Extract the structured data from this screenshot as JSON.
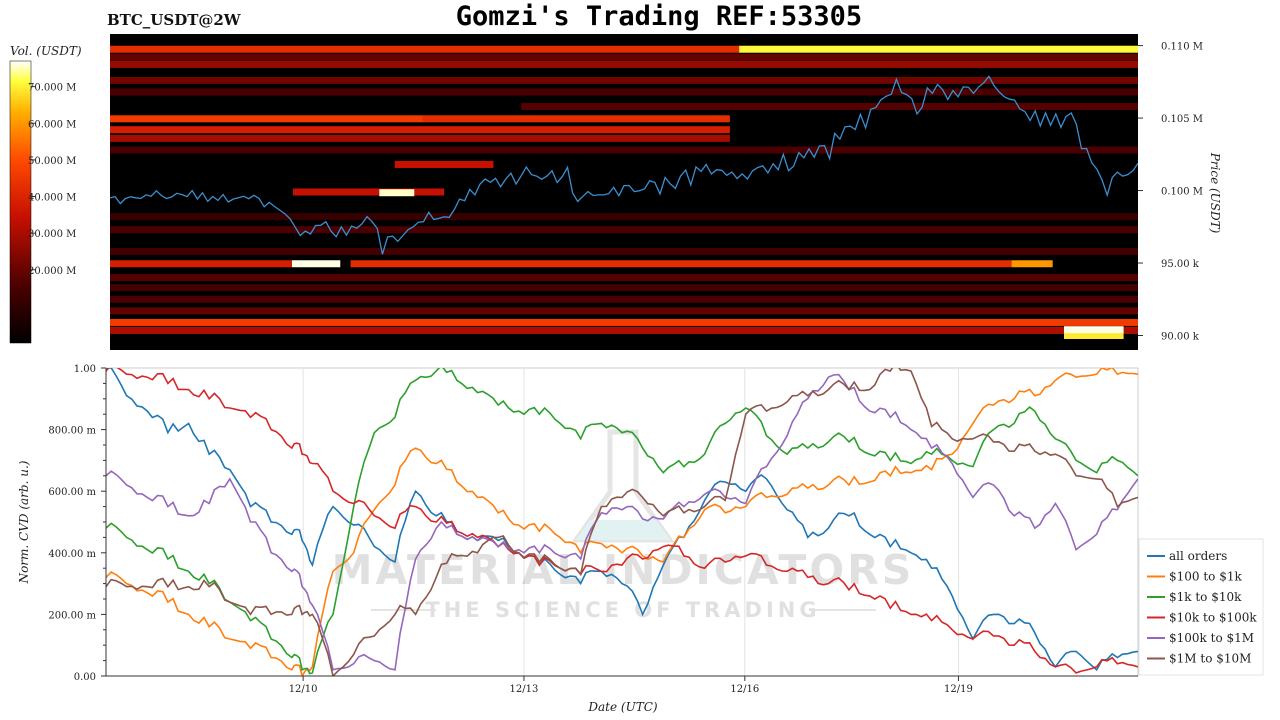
{
  "header": {
    "pair_label": "BTC_USDT@2W",
    "title": "Gomzi's Trading REF:53305"
  },
  "watermark": {
    "line1": "MATERIAL INDICATORS",
    "line2": "THE SCIENCE OF TRADING"
  },
  "colors": {
    "heatmap_bg": "#000000",
    "price_line": "#3a8fd0",
    "all_orders": "#1f77b4",
    "usd_100_1k": "#ff7f0e",
    "usd_1k_10k": "#2ca02c",
    "usd_10k_100k": "#d62728",
    "usd_100k_1m": "#9467bd",
    "usd_1m_10m": "#8c564b"
  },
  "chart_data": [
    {
      "type": "heatmap",
      "ylabel": "Price (USDT)",
      "yticks": [
        "0.110 M",
        "0.105 M",
        "0.100 M",
        "95.00 k",
        "90.00 k"
      ],
      "ytick_values": [
        110000,
        105000,
        100000,
        95000,
        90000
      ],
      "ylim": [
        89000,
        110800
      ],
      "colorbar": {
        "label": "Vol. (USDT)",
        "ticks": [
          "70.000 M",
          "60.000 M",
          "50.000 M",
          "40.000 M",
          "30.000 M",
          "20.000 M"
        ],
        "tick_values": [
          70,
          60,
          50,
          40,
          30,
          20
        ],
        "range": [
          0,
          77
        ]
      },
      "price_series": {
        "x": [
          0,
          0.5,
          1,
          1.5,
          2,
          2.5,
          3,
          3.5,
          4,
          4.5,
          5,
          5.5,
          6,
          6.5,
          7,
          7.5,
          8,
          8.5,
          9,
          9.5,
          10,
          10.5,
          11,
          11.5,
          12,
          12.5,
          13,
          13.5,
          14,
          14.5,
          15,
          15.5,
          16,
          16.5,
          17,
          17.5,
          18,
          18.5,
          19,
          19.5,
          20,
          20.5,
          21,
          21.5,
          22,
          22.5,
          23,
          23.5,
          24,
          24.5,
          25,
          25.5,
          26,
          26.5,
          27,
          27.5,
          28,
          28.5,
          29,
          29.5,
          30,
          30.5,
          31,
          31.5,
          32,
          32.5,
          33,
          33.5,
          34,
          34.5,
          35,
          35.5,
          36,
          36.5,
          37,
          37.5,
          38,
          38.5,
          39,
          39.5,
          40,
          40.5,
          41,
          41.5,
          42,
          42.5,
          43,
          43.5,
          44,
          44.5,
          45,
          45.5,
          46,
          46.5,
          47,
          47.5,
          48,
          48.5,
          49,
          49.5,
          50,
          50.5,
          51,
          51.5,
          52,
          52.5,
          53,
          53.5,
          54,
          54.5,
          55,
          55.5,
          56,
          56.5,
          57,
          57.5,
          58,
          58.5,
          59,
          59.5,
          60,
          60.5,
          61,
          61.5,
          62,
          62.5,
          63,
          63.5,
          64,
          64.5,
          65,
          65.5,
          66,
          66.5,
          67,
          67.5,
          68,
          68.5,
          69,
          69.5,
          70,
          70.5,
          71,
          71.5,
          72,
          72.5,
          73,
          73.5,
          74,
          74.5,
          75,
          75.5,
          76,
          76.5,
          77,
          77.5,
          78,
          78.5,
          79,
          79.5,
          80,
          80.5,
          81,
          81.5,
          82,
          82.5,
          83,
          83.5,
          84,
          84.5,
          85,
          85.5,
          86,
          86.5,
          87,
          87.5,
          88,
          88.5,
          89,
          89.5,
          90,
          90.5,
          91,
          91.5,
          92,
          92.5,
          93,
          93.5,
          94,
          94.5,
          95,
          95.5,
          96,
          96.5,
          97,
          97.5,
          98,
          98.5,
          99,
          99.5,
          100
        ],
        "y": [
          99500,
          99580,
          99100,
          99450,
          99570,
          99500,
          99450,
          99710,
          99600,
          99980,
          99660,
          99450,
          99560,
          99810,
          99720,
          99580,
          100000,
          99420,
          99850,
          99250,
          99590,
          99320,
          99730,
          99210,
          99420,
          99500,
          99600,
          99440,
          99670,
          99450,
          98880,
          99180,
          98900,
          98660,
          98400,
          98060,
          97500,
          96900,
          97200,
          97000,
          97590,
          97600,
          97850,
          97200,
          96810,
          97500,
          96930,
          97550,
          97400,
          97700,
          98200,
          97850,
          97380,
          95600,
          96800,
          96850,
          96500,
          96900,
          97300,
          97500,
          97820,
          97850,
          98500,
          98000,
          98080,
          98190,
          98150,
          98700,
          99410,
          99300,
          100080,
          99700,
          100450,
          100800,
          100570,
          100850,
          100260,
          100800,
          101200,
          100450,
          101020,
          101620,
          101100,
          101000,
          100780,
          101000,
          101360,
          100550,
          100960,
          101600,
          99830,
          99250,
          99600,
          99930,
          99660,
          99700,
          99700,
          99780,
          100220,
          99640,
          100340,
          100350,
          99930,
          99990,
          100120,
          100680,
          100560,
          99760,
          100900,
          100460,
          100150,
          101000,
          101420,
          100380,
          101630,
          101320,
          101800,
          101140,
          101440,
          101400,
          101050,
          101270,
          100830,
          101150,
          100800,
          101360,
          101580,
          101700,
          101220,
          101850,
          101440,
          102500,
          101370,
          101680,
          102620,
          102260,
          102870,
          102300,
          103070,
          103100,
          102200,
          103940,
          103550,
          104400,
          104440,
          104210,
          105250,
          104330,
          105600,
          105730,
          106270,
          106500,
          106640,
          107680,
          106760,
          106620,
          106340,
          105290,
          105740,
          107080,
          106700,
          107320,
          106950,
          106280,
          106900,
          106470,
          107150,
          107130,
          106700,
          107150,
          107430,
          107880,
          107230,
          106800,
          106470,
          106300,
          106240,
          105630,
          105450,
          104840,
          105490,
          104460,
          105360,
          104500,
          105290,
          104360,
          105100,
          105350,
          104590,
          102890,
          102900,
          101920,
          101470,
          100740,
          99680,
          100900,
          101270,
          101000,
          101100,
          101370,
          101880,
          101430,
          100180,
          100390
        ]
      },
      "price_series_note": "x is position along the shared time axis (0 = left edge, 100 = right edge, 12/10 at 19.1, 12/13 at 40.5, 12/16 at 61.9, 12/19 at 82.6)",
      "bands": [
        {
          "price": 109750,
          "start": 0,
          "end": 61.2,
          "intensity": 0.55
        },
        {
          "price": 109750,
          "start": 61.2,
          "end": 100,
          "intensity": 0.92
        },
        {
          "price": 109200,
          "start": 0,
          "end": 100,
          "intensity": 0.25
        },
        {
          "price": 108700,
          "start": 0,
          "end": 100,
          "intensity": 0.35
        },
        {
          "price": 107600,
          "start": 0,
          "end": 100,
          "intensity": 0.28
        },
        {
          "price": 106800,
          "start": 0,
          "end": 100,
          "intensity": 0.2
        },
        {
          "price": 105800,
          "start": 40,
          "end": 100,
          "intensity": 0.22
        },
        {
          "price": 104950,
          "start": 0,
          "end": 30.4,
          "intensity": 0.6
        },
        {
          "price": 104950,
          "start": 30.4,
          "end": 60.3,
          "intensity": 0.55
        },
        {
          "price": 104200,
          "start": 0,
          "end": 60.3,
          "intensity": 0.5
        },
        {
          "price": 103600,
          "start": 0,
          "end": 60.3,
          "intensity": 0.38
        },
        {
          "price": 102800,
          "start": 0,
          "end": 100,
          "intensity": 0.2
        },
        {
          "price": 101800,
          "start": 27.7,
          "end": 37.3,
          "intensity": 0.45
        },
        {
          "price": 99900,
          "start": 17.8,
          "end": 32.5,
          "intensity": 0.45
        },
        {
          "price": 99850,
          "start": 26.2,
          "end": 29.6,
          "intensity": 0.98
        },
        {
          "price": 98200,
          "start": 0,
          "end": 100,
          "intensity": 0.15
        },
        {
          "price": 97300,
          "start": 0,
          "end": 100,
          "intensity": 0.2
        },
        {
          "price": 95800,
          "start": 0,
          "end": 100,
          "intensity": 0.18
        },
        {
          "price": 94950,
          "start": 0,
          "end": 17.7,
          "intensity": 0.5
        },
        {
          "price": 94950,
          "start": 17.7,
          "end": 22.4,
          "intensity": 0.99
        },
        {
          "price": 94950,
          "start": 23.4,
          "end": 87.7,
          "intensity": 0.55
        },
        {
          "price": 94950,
          "start": 87.7,
          "end": 91.7,
          "intensity": 0.78
        },
        {
          "price": 94000,
          "start": 0,
          "end": 100,
          "intensity": 0.22
        },
        {
          "price": 93300,
          "start": 0,
          "end": 100,
          "intensity": 0.18
        },
        {
          "price": 92500,
          "start": 0,
          "end": 100,
          "intensity": 0.2
        },
        {
          "price": 91700,
          "start": 0,
          "end": 100,
          "intensity": 0.25
        },
        {
          "price": 90900,
          "start": 0,
          "end": 100,
          "intensity": 0.6
        },
        {
          "price": 90350,
          "start": 0,
          "end": 100,
          "intensity": 0.4
        },
        {
          "price": 90000,
          "start": 92.8,
          "end": 98.6,
          "intensity": 0.9
        },
        {
          "price": 90400,
          "start": 92.8,
          "end": 98.6,
          "intensity": 0.99
        }
      ]
    },
    {
      "type": "line",
      "xlabel": "Date (UTC)",
      "ylabel": "Norm. CVD (arb. u.)",
      "xticks": [
        "12/10",
        "12/13",
        "12/16",
        "12/19"
      ],
      "xtick_positions": [
        19.1,
        40.5,
        61.9,
        82.6
      ],
      "yticks": [
        "1.00",
        "800.00 m",
        "600.00 m",
        "400.00 m",
        "200.00 m",
        "0.00"
      ],
      "ytick_values": [
        1.0,
        0.8,
        0.6,
        0.4,
        0.2,
        0.0
      ],
      "ylim": [
        0,
        1.0
      ],
      "legend_position": "lower-right",
      "x": [
        0,
        2,
        4,
        6,
        8,
        10,
        12,
        14,
        16,
        18,
        19,
        20,
        22,
        24,
        26,
        28,
        30,
        32,
        34,
        36,
        38,
        40,
        42,
        44,
        46,
        48,
        50,
        52,
        54,
        56,
        58,
        60,
        62,
        64,
        66,
        68,
        70,
        72,
        74,
        76,
        78,
        80,
        82,
        84,
        86,
        88,
        90,
        92,
        94,
        96,
        98,
        100
      ],
      "series": [
        {
          "name": "all orders",
          "color_key": "all_orders",
          "values": [
            1.0,
            0.91,
            0.86,
            0.79,
            0.82,
            0.72,
            0.67,
            0.55,
            0.5,
            0.46,
            0.44,
            0.36,
            0.55,
            0.49,
            0.42,
            0.37,
            0.6,
            0.52,
            0.46,
            0.44,
            0.44,
            0.4,
            0.36,
            0.33,
            0.3,
            0.34,
            0.3,
            0.2,
            0.36,
            0.45,
            0.57,
            0.63,
            0.6,
            0.64,
            0.54,
            0.45,
            0.48,
            0.52,
            0.46,
            0.42,
            0.4,
            0.35,
            0.26,
            0.12,
            0.2,
            0.17,
            0.14,
            0.03,
            0.08,
            0.02,
            0.06,
            0.08
          ]
        },
        {
          "name": "$100 to $1k",
          "color_key": "usd_100_1k",
          "values": [
            0.32,
            0.3,
            0.27,
            0.24,
            0.2,
            0.16,
            0.12,
            0.09,
            0.06,
            0.02,
            0.0,
            0.03,
            0.34,
            0.4,
            0.54,
            0.62,
            0.74,
            0.69,
            0.63,
            0.58,
            0.53,
            0.49,
            0.47,
            0.45,
            0.4,
            0.43,
            0.4,
            0.39,
            0.37,
            0.45,
            0.54,
            0.53,
            0.55,
            0.58,
            0.59,
            0.61,
            0.62,
            0.62,
            0.63,
            0.65,
            0.66,
            0.67,
            0.72,
            0.82,
            0.88,
            0.9,
            0.91,
            0.96,
            0.97,
            0.98,
            0.98,
            0.98
          ]
        },
        {
          "name": "$1k to $10k",
          "color_key": "usd_1k_10k",
          "values": [
            0.48,
            0.45,
            0.41,
            0.38,
            0.34,
            0.3,
            0.24,
            0.18,
            0.12,
            0.06,
            0.02,
            0.01,
            0.2,
            0.55,
            0.79,
            0.84,
            0.96,
            0.99,
            0.96,
            0.92,
            0.88,
            0.86,
            0.85,
            0.82,
            0.77,
            0.82,
            0.79,
            0.74,
            0.66,
            0.68,
            0.72,
            0.82,
            0.87,
            0.78,
            0.72,
            0.74,
            0.76,
            0.76,
            0.72,
            0.7,
            0.69,
            0.72,
            0.7,
            0.68,
            0.8,
            0.82,
            0.86,
            0.77,
            0.7,
            0.66,
            0.7,
            0.65
          ]
        },
        {
          "name": "$10k to $100k",
          "color_key": "usd_10k_100k",
          "values": [
            0.99,
            0.98,
            0.97,
            0.95,
            0.93,
            0.9,
            0.87,
            0.84,
            0.8,
            0.74,
            0.72,
            0.69,
            0.6,
            0.56,
            0.52,
            0.48,
            0.55,
            0.5,
            0.47,
            0.45,
            0.42,
            0.4,
            0.36,
            0.35,
            0.33,
            0.34,
            0.36,
            0.38,
            0.42,
            0.39,
            0.35,
            0.37,
            0.39,
            0.36,
            0.34,
            0.32,
            0.3,
            0.28,
            0.26,
            0.22,
            0.2,
            0.18,
            0.15,
            0.12,
            0.13,
            0.1,
            0.08,
            0.03,
            0.01,
            0.03,
            0.04,
            0.03
          ]
        },
        {
          "name": "$100k to $1M",
          "color_key": "usd_100k_1m",
          "values": [
            0.65,
            0.62,
            0.58,
            0.55,
            0.52,
            0.56,
            0.64,
            0.5,
            0.4,
            0.34,
            0.29,
            0.23,
            0.02,
            0.04,
            0.05,
            0.02,
            0.38,
            0.48,
            0.46,
            0.44,
            0.42,
            0.41,
            0.4,
            0.39,
            0.38,
            0.53,
            0.54,
            0.51,
            0.51,
            0.55,
            0.59,
            0.58,
            0.56,
            0.68,
            0.78,
            0.9,
            0.97,
            0.93,
            0.86,
            0.84,
            0.8,
            0.74,
            0.69,
            0.58,
            0.62,
            0.52,
            0.48,
            0.56,
            0.41,
            0.46,
            0.54,
            0.64
          ]
        },
        {
          "name": "$1M to $10M",
          "color_key": "usd_1m_10m",
          "values": [
            0.29,
            0.29,
            0.29,
            0.29,
            0.29,
            0.29,
            0.24,
            0.2,
            0.2,
            0.2,
            0.2,
            0.2,
            0.0,
            0.07,
            0.13,
            0.2,
            0.2,
            0.32,
            0.39,
            0.4,
            0.45,
            0.4,
            0.37,
            0.35,
            0.33,
            0.55,
            0.58,
            0.58,
            0.52,
            0.53,
            0.55,
            0.57,
            0.85,
            0.86,
            0.89,
            0.91,
            0.93,
            0.93,
            0.93,
            0.99,
            0.99,
            0.81,
            0.77,
            0.77,
            0.76,
            0.73,
            0.73,
            0.72,
            0.65,
            0.64,
            0.55,
            0.58
          ]
        }
      ]
    }
  ]
}
